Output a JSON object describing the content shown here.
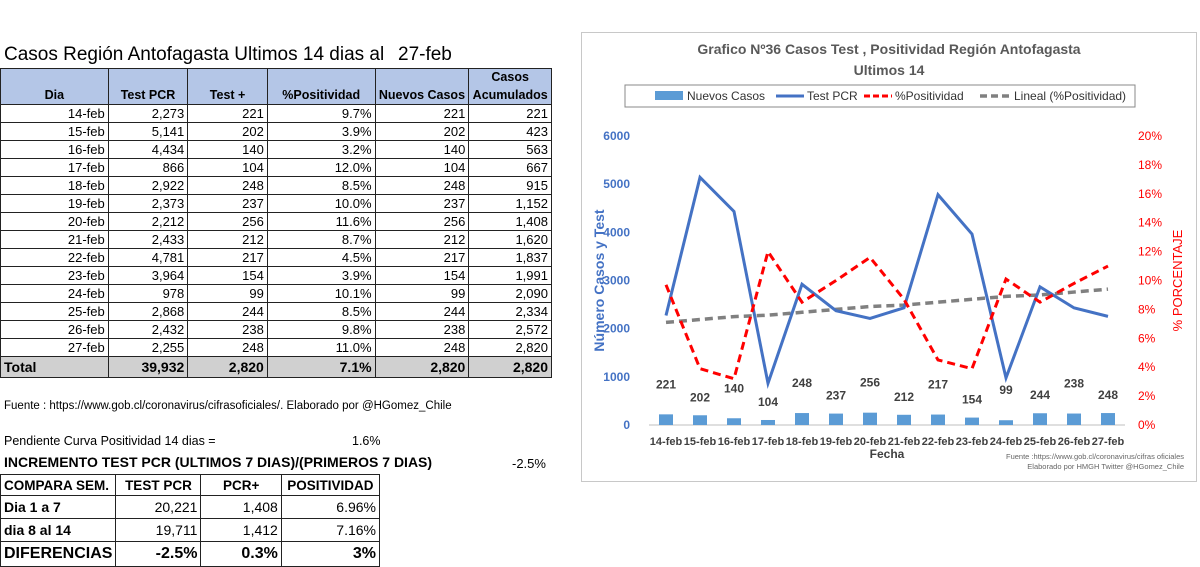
{
  "title": "Casos Región Antofagasta Ultimos 14 dias al",
  "title_date": "27-feb",
  "table": {
    "headers_top": [
      "",
      "",
      "",
      "",
      "",
      "Casos"
    ],
    "headers": [
      "Dia",
      "Test PCR",
      "Test +",
      "%Positividad",
      "Nuevos Casos",
      "Acumulados"
    ],
    "rows": [
      [
        "14-feb",
        "2,273",
        "221",
        "9.7%",
        "221",
        "221"
      ],
      [
        "15-feb",
        "5,141",
        "202",
        "3.9%",
        "202",
        "423"
      ],
      [
        "16-feb",
        "4,434",
        "140",
        "3.2%",
        "140",
        "563"
      ],
      [
        "17-feb",
        "866",
        "104",
        "12.0%",
        "104",
        "667"
      ],
      [
        "18-feb",
        "2,922",
        "248",
        "8.5%",
        "248",
        "915"
      ],
      [
        "19-feb",
        "2,373",
        "237",
        "10.0%",
        "237",
        "1,152"
      ],
      [
        "20-feb",
        "2,212",
        "256",
        "11.6%",
        "256",
        "1,408"
      ],
      [
        "21-feb",
        "2,433",
        "212",
        "8.7%",
        "212",
        "1,620"
      ],
      [
        "22-feb",
        "4,781",
        "217",
        "4.5%",
        "217",
        "1,837"
      ],
      [
        "23-feb",
        "3,964",
        "154",
        "3.9%",
        "154",
        "1,991"
      ],
      [
        "24-feb",
        "978",
        "99",
        "10.1%",
        "99",
        "2,090"
      ],
      [
        "25-feb",
        "2,868",
        "244",
        "8.5%",
        "244",
        "2,334"
      ],
      [
        "26-feb",
        "2,432",
        "238",
        "9.8%",
        "238",
        "2,572"
      ],
      [
        "27-feb",
        "2,255",
        "248",
        "11.0%",
        "248",
        "2,820"
      ]
    ],
    "total": [
      "Total",
      "39,932",
      "2,820",
      "7.1%",
      "2,820",
      "2,820"
    ]
  },
  "source": "Fuente : https://www.gob.cl/coronavirus/cifrasoficiales/.    Elaborado por  @HGomez_Chile",
  "pendiente": {
    "label": "Pendiente Curva Positividad 14 dias =",
    "value": "1.6%"
  },
  "incremento": {
    "label": "INCREMENTO TEST PCR (ULTIMOS 7 DIAS)/(PRIMEROS 7 DIAS)",
    "value": "-2.5%"
  },
  "compare": {
    "headers": [
      "COMPARA SEM.",
      "TEST PCR",
      "PCR+",
      "POSITIVIDAD"
    ],
    "rows": [
      [
        "Dia 1 a 7",
        "20,221",
        "1,408",
        "6.96%"
      ],
      [
        "dia 8 al 14",
        "19,711",
        "1,412",
        "7.16%"
      ]
    ],
    "diff": [
      "DIFERENCIAS",
      "-2.5%",
      "0.3%",
      "3%"
    ]
  },
  "chart_data": {
    "type": "bar+line",
    "title": "Grafico Nº36  Casos Test  ,  Positividad Región Antofagasta",
    "subtitle": "Ultimos 14",
    "xlabel": "Fecha",
    "ylabel": "Número Casos y Test",
    "ylabel_right": "% PORCENTAJE",
    "categories": [
      "14-feb",
      "15-feb",
      "16-feb",
      "17-feb",
      "18-feb",
      "19-feb",
      "20-feb",
      "21-feb",
      "22-feb",
      "23-feb",
      "24-feb",
      "25-feb",
      "26-feb",
      "27-feb"
    ],
    "ylim": [
      0,
      6000
    ],
    "yticks": [
      "0",
      "1000",
      "2000",
      "3000",
      "4000",
      "5000",
      "6000"
    ],
    "ylim_right": [
      0,
      20
    ],
    "yticks_right": [
      "0%",
      "2%",
      "4%",
      "6%",
      "8%",
      "10%",
      "12%",
      "14%",
      "16%",
      "18%",
      "20%"
    ],
    "series": [
      {
        "name": "Nuevos Casos",
        "type": "bar",
        "axis": "left",
        "color": "#5b9bd5",
        "values": [
          221,
          202,
          140,
          104,
          248,
          237,
          256,
          212,
          217,
          154,
          99,
          244,
          238,
          248
        ],
        "labels": [
          "221",
          "202",
          "140",
          "104",
          "248",
          "237",
          "256",
          "212",
          "217",
          "154",
          "99",
          "244",
          "238",
          "248"
        ]
      },
      {
        "name": "Test PCR",
        "type": "line",
        "axis": "left",
        "color": "#4472c4",
        "values": [
          2273,
          5141,
          4434,
          866,
          2922,
          2373,
          2212,
          2433,
          4781,
          3964,
          978,
          2868,
          2432,
          2255
        ]
      },
      {
        "name": "%Positividad",
        "type": "line-dashed",
        "axis": "right",
        "color": "#ff0000",
        "values": [
          9.7,
          3.9,
          3.2,
          12.0,
          8.5,
          10.0,
          11.6,
          8.7,
          4.5,
          3.9,
          10.1,
          8.5,
          9.8,
          11.0
        ]
      },
      {
        "name": "Lineal (%Positividad)",
        "type": "trend",
        "axis": "right",
        "color": "#808080",
        "values": [
          7.1,
          7.3,
          7.5,
          7.6,
          7.8,
          8.0,
          8.2,
          8.3,
          8.5,
          8.7,
          8.9,
          9.0,
          9.2,
          9.4
        ]
      }
    ],
    "legend_position": "top",
    "colors": {
      "left_axis": "#4472c4",
      "right_axis": "#ff0000",
      "title": "#595959"
    },
    "footnote": [
      "Fuente  :https://www.gob.cl/coronavirus/cifras oficiales",
      "Elaborado por HMGH  Twitter @HGomez_Chile"
    ]
  }
}
